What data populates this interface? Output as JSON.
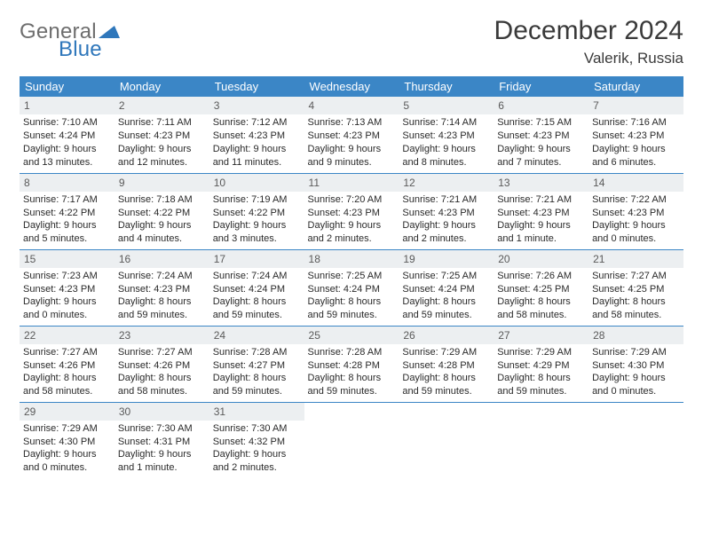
{
  "logo": {
    "text1": "General",
    "text2": "Blue",
    "triangle_color": "#2f77bb"
  },
  "title": "December 2024",
  "location": "Valerik, Russia",
  "header_bg": "#3b86c6",
  "daybar_bg": "#eceff1",
  "weekday_labels": [
    "Sunday",
    "Monday",
    "Tuesday",
    "Wednesday",
    "Thursday",
    "Friday",
    "Saturday"
  ],
  "weeks": [
    [
      {
        "day": "1",
        "sunrise": "Sunrise: 7:10 AM",
        "sunset": "Sunset: 4:24 PM",
        "daylight": "Daylight: 9 hours and 13 minutes."
      },
      {
        "day": "2",
        "sunrise": "Sunrise: 7:11 AM",
        "sunset": "Sunset: 4:23 PM",
        "daylight": "Daylight: 9 hours and 12 minutes."
      },
      {
        "day": "3",
        "sunrise": "Sunrise: 7:12 AM",
        "sunset": "Sunset: 4:23 PM",
        "daylight": "Daylight: 9 hours and 11 minutes."
      },
      {
        "day": "4",
        "sunrise": "Sunrise: 7:13 AM",
        "sunset": "Sunset: 4:23 PM",
        "daylight": "Daylight: 9 hours and 9 minutes."
      },
      {
        "day": "5",
        "sunrise": "Sunrise: 7:14 AM",
        "sunset": "Sunset: 4:23 PM",
        "daylight": "Daylight: 9 hours and 8 minutes."
      },
      {
        "day": "6",
        "sunrise": "Sunrise: 7:15 AM",
        "sunset": "Sunset: 4:23 PM",
        "daylight": "Daylight: 9 hours and 7 minutes."
      },
      {
        "day": "7",
        "sunrise": "Sunrise: 7:16 AM",
        "sunset": "Sunset: 4:23 PM",
        "daylight": "Daylight: 9 hours and 6 minutes."
      }
    ],
    [
      {
        "day": "8",
        "sunrise": "Sunrise: 7:17 AM",
        "sunset": "Sunset: 4:22 PM",
        "daylight": "Daylight: 9 hours and 5 minutes."
      },
      {
        "day": "9",
        "sunrise": "Sunrise: 7:18 AM",
        "sunset": "Sunset: 4:22 PM",
        "daylight": "Daylight: 9 hours and 4 minutes."
      },
      {
        "day": "10",
        "sunrise": "Sunrise: 7:19 AM",
        "sunset": "Sunset: 4:22 PM",
        "daylight": "Daylight: 9 hours and 3 minutes."
      },
      {
        "day": "11",
        "sunrise": "Sunrise: 7:20 AM",
        "sunset": "Sunset: 4:23 PM",
        "daylight": "Daylight: 9 hours and 2 minutes."
      },
      {
        "day": "12",
        "sunrise": "Sunrise: 7:21 AM",
        "sunset": "Sunset: 4:23 PM",
        "daylight": "Daylight: 9 hours and 2 minutes."
      },
      {
        "day": "13",
        "sunrise": "Sunrise: 7:21 AM",
        "sunset": "Sunset: 4:23 PM",
        "daylight": "Daylight: 9 hours and 1 minute."
      },
      {
        "day": "14",
        "sunrise": "Sunrise: 7:22 AM",
        "sunset": "Sunset: 4:23 PM",
        "daylight": "Daylight: 9 hours and 0 minutes."
      }
    ],
    [
      {
        "day": "15",
        "sunrise": "Sunrise: 7:23 AM",
        "sunset": "Sunset: 4:23 PM",
        "daylight": "Daylight: 9 hours and 0 minutes."
      },
      {
        "day": "16",
        "sunrise": "Sunrise: 7:24 AM",
        "sunset": "Sunset: 4:23 PM",
        "daylight": "Daylight: 8 hours and 59 minutes."
      },
      {
        "day": "17",
        "sunrise": "Sunrise: 7:24 AM",
        "sunset": "Sunset: 4:24 PM",
        "daylight": "Daylight: 8 hours and 59 minutes."
      },
      {
        "day": "18",
        "sunrise": "Sunrise: 7:25 AM",
        "sunset": "Sunset: 4:24 PM",
        "daylight": "Daylight: 8 hours and 59 minutes."
      },
      {
        "day": "19",
        "sunrise": "Sunrise: 7:25 AM",
        "sunset": "Sunset: 4:24 PM",
        "daylight": "Daylight: 8 hours and 59 minutes."
      },
      {
        "day": "20",
        "sunrise": "Sunrise: 7:26 AM",
        "sunset": "Sunset: 4:25 PM",
        "daylight": "Daylight: 8 hours and 58 minutes."
      },
      {
        "day": "21",
        "sunrise": "Sunrise: 7:27 AM",
        "sunset": "Sunset: 4:25 PM",
        "daylight": "Daylight: 8 hours and 58 minutes."
      }
    ],
    [
      {
        "day": "22",
        "sunrise": "Sunrise: 7:27 AM",
        "sunset": "Sunset: 4:26 PM",
        "daylight": "Daylight: 8 hours and 58 minutes."
      },
      {
        "day": "23",
        "sunrise": "Sunrise: 7:27 AM",
        "sunset": "Sunset: 4:26 PM",
        "daylight": "Daylight: 8 hours and 58 minutes."
      },
      {
        "day": "24",
        "sunrise": "Sunrise: 7:28 AM",
        "sunset": "Sunset: 4:27 PM",
        "daylight": "Daylight: 8 hours and 59 minutes."
      },
      {
        "day": "25",
        "sunrise": "Sunrise: 7:28 AM",
        "sunset": "Sunset: 4:28 PM",
        "daylight": "Daylight: 8 hours and 59 minutes."
      },
      {
        "day": "26",
        "sunrise": "Sunrise: 7:29 AM",
        "sunset": "Sunset: 4:28 PM",
        "daylight": "Daylight: 8 hours and 59 minutes."
      },
      {
        "day": "27",
        "sunrise": "Sunrise: 7:29 AM",
        "sunset": "Sunset: 4:29 PM",
        "daylight": "Daylight: 8 hours and 59 minutes."
      },
      {
        "day": "28",
        "sunrise": "Sunrise: 7:29 AM",
        "sunset": "Sunset: 4:30 PM",
        "daylight": "Daylight: 9 hours and 0 minutes."
      }
    ],
    [
      {
        "day": "29",
        "sunrise": "Sunrise: 7:29 AM",
        "sunset": "Sunset: 4:30 PM",
        "daylight": "Daylight: 9 hours and 0 minutes."
      },
      {
        "day": "30",
        "sunrise": "Sunrise: 7:30 AM",
        "sunset": "Sunset: 4:31 PM",
        "daylight": "Daylight: 9 hours and 1 minute."
      },
      {
        "day": "31",
        "sunrise": "Sunrise: 7:30 AM",
        "sunset": "Sunset: 4:32 PM",
        "daylight": "Daylight: 9 hours and 2 minutes."
      },
      {
        "empty": true
      },
      {
        "empty": true
      },
      {
        "empty": true
      },
      {
        "empty": true
      }
    ]
  ]
}
